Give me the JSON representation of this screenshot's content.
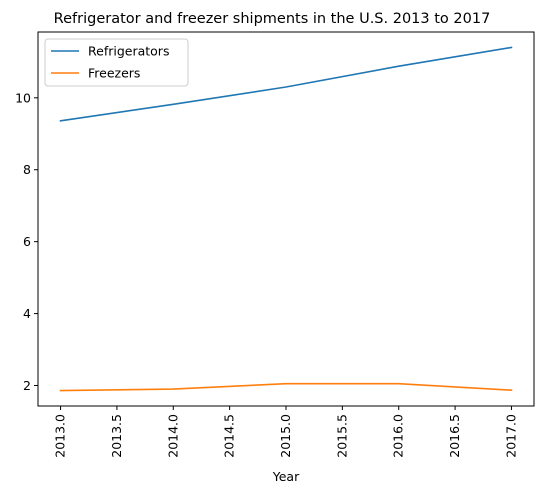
{
  "chart_data": {
    "type": "line",
    "title": "Refrigerator and freezer shipments in the U.S. 2013 to 2017",
    "xlabel": "Year",
    "ylabel": "",
    "x": [
      2013,
      2014,
      2015,
      2016,
      2017
    ],
    "xticks": [
      "2013.0",
      "2013.5",
      "2014.0",
      "2014.5",
      "2015.0",
      "2015.5",
      "2016.0",
      "2016.5",
      "2017.0"
    ],
    "xtick_values": [
      2013.0,
      2013.5,
      2014.0,
      2014.5,
      2015.0,
      2015.5,
      2016.0,
      2016.5,
      2017.0
    ],
    "yticks": [
      "2",
      "4",
      "6",
      "8",
      "10"
    ],
    "ytick_values": [
      2,
      4,
      6,
      8,
      10
    ],
    "xlim": [
      2012.8,
      2017.2
    ],
    "ylim": [
      1.43,
      11.83
    ],
    "grid": false,
    "legend_position": "top-left",
    "series": [
      {
        "name": "Refrigerators",
        "values": [
          9.36,
          9.82,
          10.3,
          10.88,
          11.4
        ],
        "color": "#1f77b4"
      },
      {
        "name": "Freezers",
        "values": [
          1.86,
          1.9,
          2.05,
          2.05,
          1.87
        ],
        "color": "#ff7f0e"
      }
    ]
  }
}
